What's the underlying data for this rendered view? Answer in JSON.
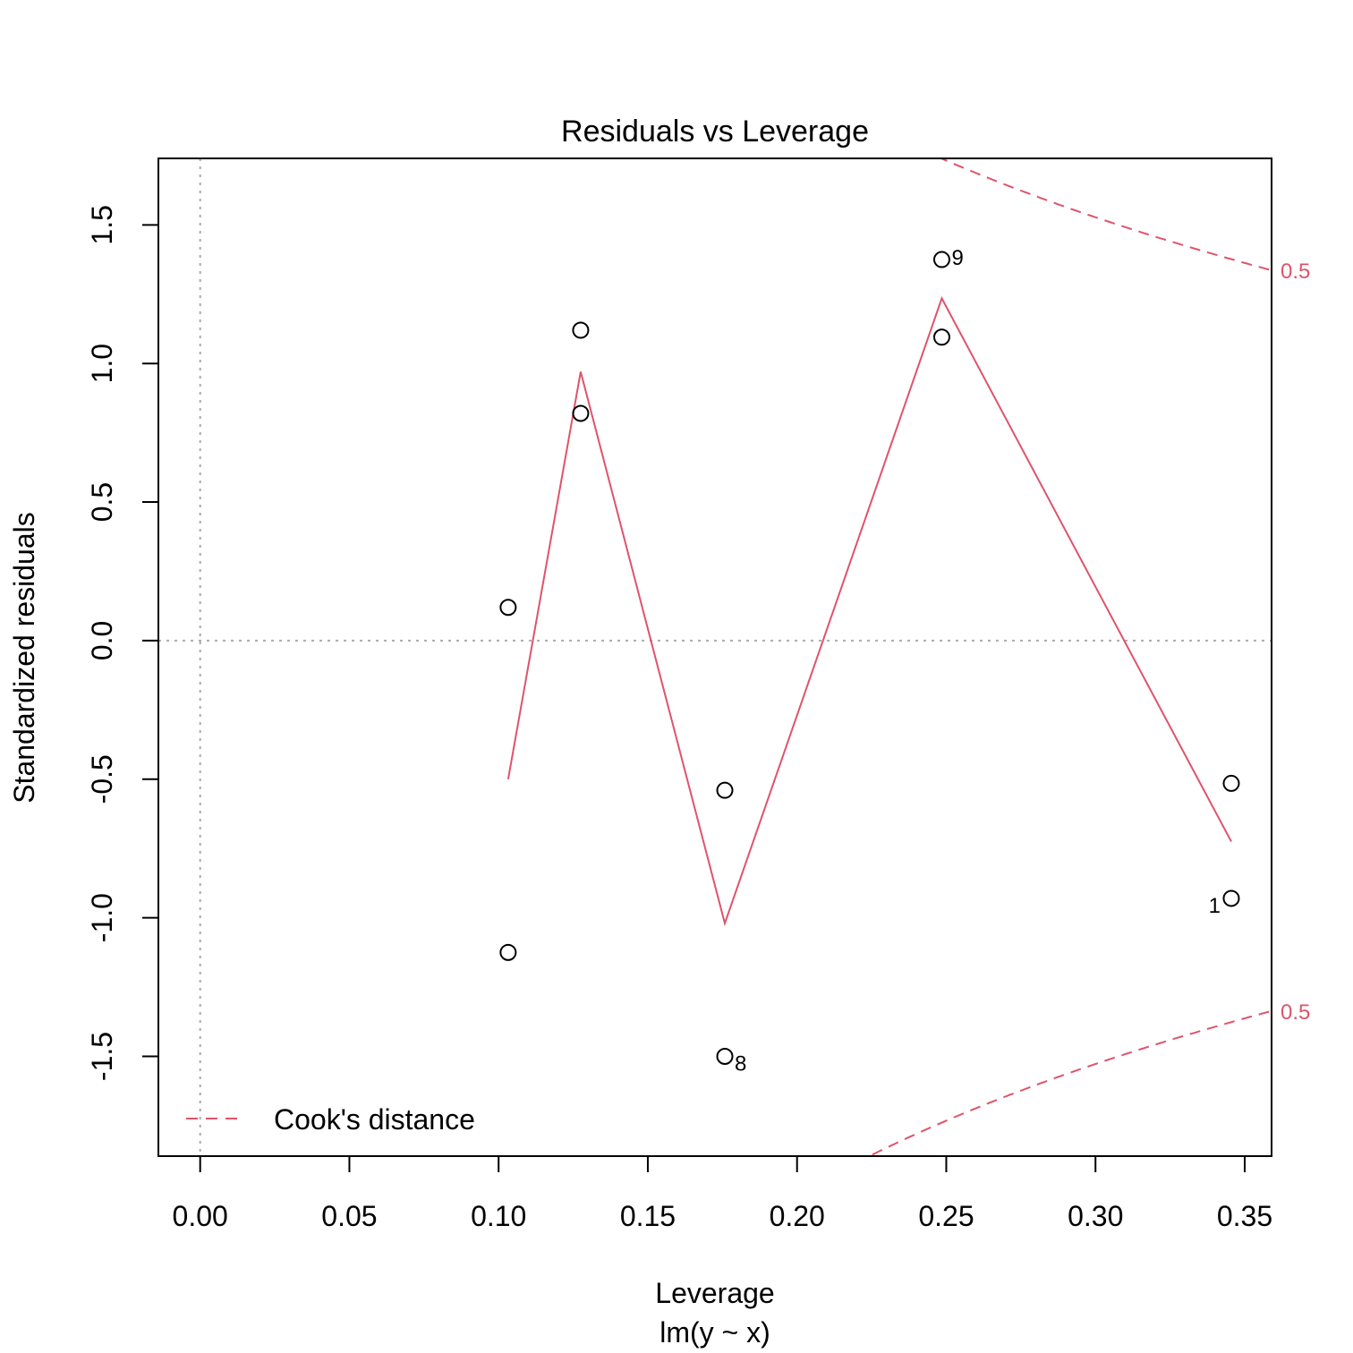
{
  "chart_data": {
    "type": "scatter",
    "title": "Residuals vs Leverage",
    "xlabel": "Leverage",
    "subtitle": "lm(y ~ x)",
    "ylabel": "Standardized residuals",
    "xlim": [
      -0.014,
      0.359
    ],
    "ylim": [
      -1.86,
      1.74
    ],
    "x_ticks": [
      "0.00",
      "0.05",
      "0.10",
      "0.15",
      "0.20",
      "0.25",
      "0.30",
      "0.35"
    ],
    "y_ticks": [
      "-1.5",
      "-1.0",
      "-0.5",
      "0.0",
      "0.5",
      "1.0",
      "1.5"
    ],
    "points": [
      {
        "x": 0.1032,
        "y": 0.12,
        "label": ""
      },
      {
        "x": 0.1032,
        "y": -1.125,
        "label": ""
      },
      {
        "x": 0.1275,
        "y": 1.12,
        "label": ""
      },
      {
        "x": 0.1275,
        "y": 0.82,
        "label": ""
      },
      {
        "x": 0.1758,
        "y": -0.54,
        "label": ""
      },
      {
        "x": 0.1758,
        "y": -1.5,
        "label": "8"
      },
      {
        "x": 0.2485,
        "y": 1.375,
        "label": "9"
      },
      {
        "x": 0.2485,
        "y": 1.095,
        "label": ""
      },
      {
        "x": 0.3455,
        "y": -0.515,
        "label": ""
      },
      {
        "x": 0.3455,
        "y": -0.93,
        "label": "1"
      }
    ],
    "smoother": {
      "x": [
        0.1032,
        0.1275,
        0.1758,
        0.2485,
        0.3455
      ],
      "y": [
        -0.5,
        0.97,
        -1.02,
        1.235,
        -0.725
      ]
    },
    "cooks_level": 0.5,
    "cooks_label": "0.5",
    "legend": {
      "label": "Cook's distance",
      "position": "bottom-left"
    },
    "colors": {
      "smoother": "#DF536B",
      "cooks": "#DF536B",
      "reference": "#AAAAAA",
      "points": "#000000"
    }
  }
}
